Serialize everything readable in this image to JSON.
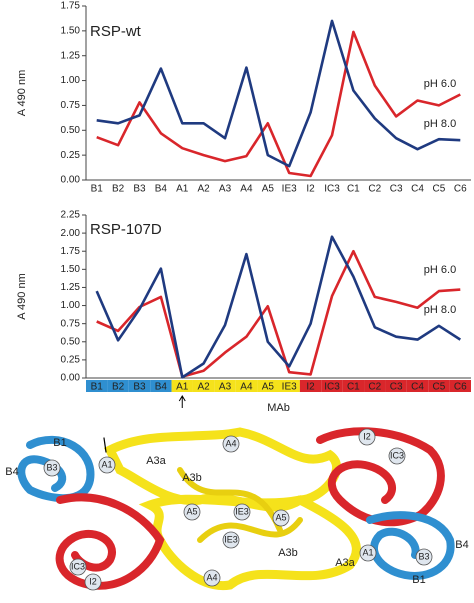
{
  "chart_data": [
    {
      "type": "line",
      "title": "RSP-wt",
      "ylabel": "A 490 nm",
      "categories": [
        "B1",
        "B2",
        "B3",
        "B4",
        "A1",
        "A2",
        "A3",
        "A4",
        "A5",
        "IE3",
        "I2",
        "IC3",
        "C1",
        "C2",
        "C3",
        "C4",
        "C5",
        "C6"
      ],
      "series": [
        {
          "name": "pH 6.0",
          "color": "#d9262b",
          "values": [
            0.43,
            0.35,
            0.78,
            0.47,
            0.32,
            0.25,
            0.19,
            0.24,
            0.57,
            0.07,
            0.04,
            0.45,
            1.49,
            0.95,
            0.64,
            0.8,
            0.75,
            0.86
          ]
        },
        {
          "name": "pH 8.0",
          "color": "#1f3a80",
          "values": [
            0.6,
            0.57,
            0.65,
            1.12,
            0.57,
            0.57,
            0.42,
            1.13,
            0.25,
            0.14,
            0.68,
            1.6,
            0.9,
            0.62,
            0.42,
            0.31,
            0.41,
            0.4
          ]
        }
      ],
      "ylim": [
        0,
        1.75
      ],
      "yticks": [
        {
          "value": 0,
          "label": "0.00"
        },
        {
          "value": 0.25,
          "label": "0.25"
        },
        {
          "value": 0.5,
          "label": "0.50"
        },
        {
          "value": 0.75,
          "label": "0.75"
        },
        {
          "value": 1,
          "label": "1.00"
        },
        {
          "value": 1.25,
          "label": "1.25"
        },
        {
          "value": 1.5,
          "label": "1.50"
        },
        {
          "value": 1.75,
          "label": "1.75"
        }
      ]
    },
    {
      "type": "line",
      "title": "RSP-107D",
      "ylabel": "A 490 nm",
      "xlabel": "MAb",
      "categories": [
        "B1",
        "B2",
        "B3",
        "B4",
        "A1",
        "A2",
        "A3",
        "A4",
        "A5",
        "IE3",
        "I2",
        "IC3",
        "C1",
        "C2",
        "C3",
        "C4",
        "C5",
        "C6"
      ],
      "category_colors": [
        "#2f8fd0",
        "#2f8fd0",
        "#2f8fd0",
        "#2f8fd0",
        "#f5e21b",
        "#f5e21b",
        "#f5e21b",
        "#f5e21b",
        "#f5e21b",
        "#f5e21b",
        "#d9262b",
        "#d9262b",
        "#d9262b",
        "#d9262b",
        "#d9262b",
        "#d9262b",
        "#d9262b",
        "#d9262b"
      ],
      "series": [
        {
          "name": "pH 6.0",
          "color": "#d9262b",
          "values": [
            0.78,
            0.65,
            0.98,
            1.12,
            0.02,
            0.1,
            0.35,
            0.57,
            0.99,
            0.08,
            0.05,
            1.13,
            1.75,
            1.12,
            1.05,
            0.97,
            1.2,
            1.22
          ]
        },
        {
          "name": "pH 8.0",
          "color": "#1f3a80",
          "values": [
            1.2,
            0.52,
            0.95,
            1.51,
            0.01,
            0.2,
            0.73,
            1.71,
            0.5,
            0.16,
            0.75,
            1.95,
            1.4,
            0.7,
            0.57,
            0.53,
            0.72,
            0.53
          ]
        }
      ],
      "ylim": [
        0,
        2.25
      ],
      "yticks": [
        {
          "value": 0,
          "label": "0.00"
        },
        {
          "value": 0.25,
          "label": "0.25"
        },
        {
          "value": 0.5,
          "label": "0.50"
        },
        {
          "value": 0.75,
          "label": "0.75"
        },
        {
          "value": 1,
          "label": "1.00"
        },
        {
          "value": 1.25,
          "label": "1.25"
        },
        {
          "value": 1.5,
          "label": "1.50"
        },
        {
          "value": 1.75,
          "label": "1.75"
        },
        {
          "value": 2,
          "label": "2.00"
        },
        {
          "value": 2.25,
          "label": "2.25"
        }
      ]
    }
  ],
  "structure": {
    "labels": [
      "B1",
      "B3",
      "B4",
      "A1",
      "A3a",
      "A3b",
      "A4",
      "IE3",
      "A5",
      "I2",
      "IC3",
      "A5",
      "IE3",
      "A3b",
      "A3a",
      "A4",
      "A1",
      "IC3",
      "I2",
      "B4",
      "B3",
      "B1"
    ]
  }
}
